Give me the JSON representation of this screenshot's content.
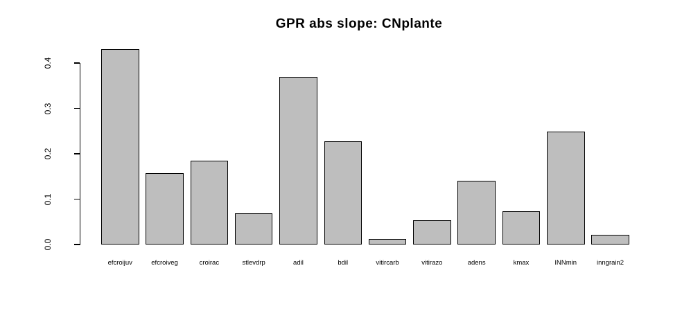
{
  "chart_data": {
    "type": "bar",
    "title": "GPR abs slope: CNplante",
    "categories": [
      "efcroijuv",
      "efcroiveg",
      "croirac",
      "stlevdrp",
      "adil",
      "bdil",
      "vitircarb",
      "vitirazo",
      "adens",
      "kmax",
      "INNmin",
      "inngrain2"
    ],
    "values": [
      0.43,
      0.157,
      0.185,
      0.068,
      0.37,
      0.227,
      0.012,
      0.054,
      0.141,
      0.074,
      0.249,
      0.021
    ],
    "xlabel": "",
    "ylabel": "",
    "ylim": [
      0,
      0.4
    ],
    "yticks": [
      0.0,
      0.1,
      0.2,
      0.3,
      0.4
    ],
    "ytick_labels": [
      "0.0",
      "0.1",
      "0.2",
      "0.3",
      "0.4"
    ],
    "bar_fill": "#bebebe",
    "bar_border": "#000000",
    "grid": false,
    "legend": false
  }
}
